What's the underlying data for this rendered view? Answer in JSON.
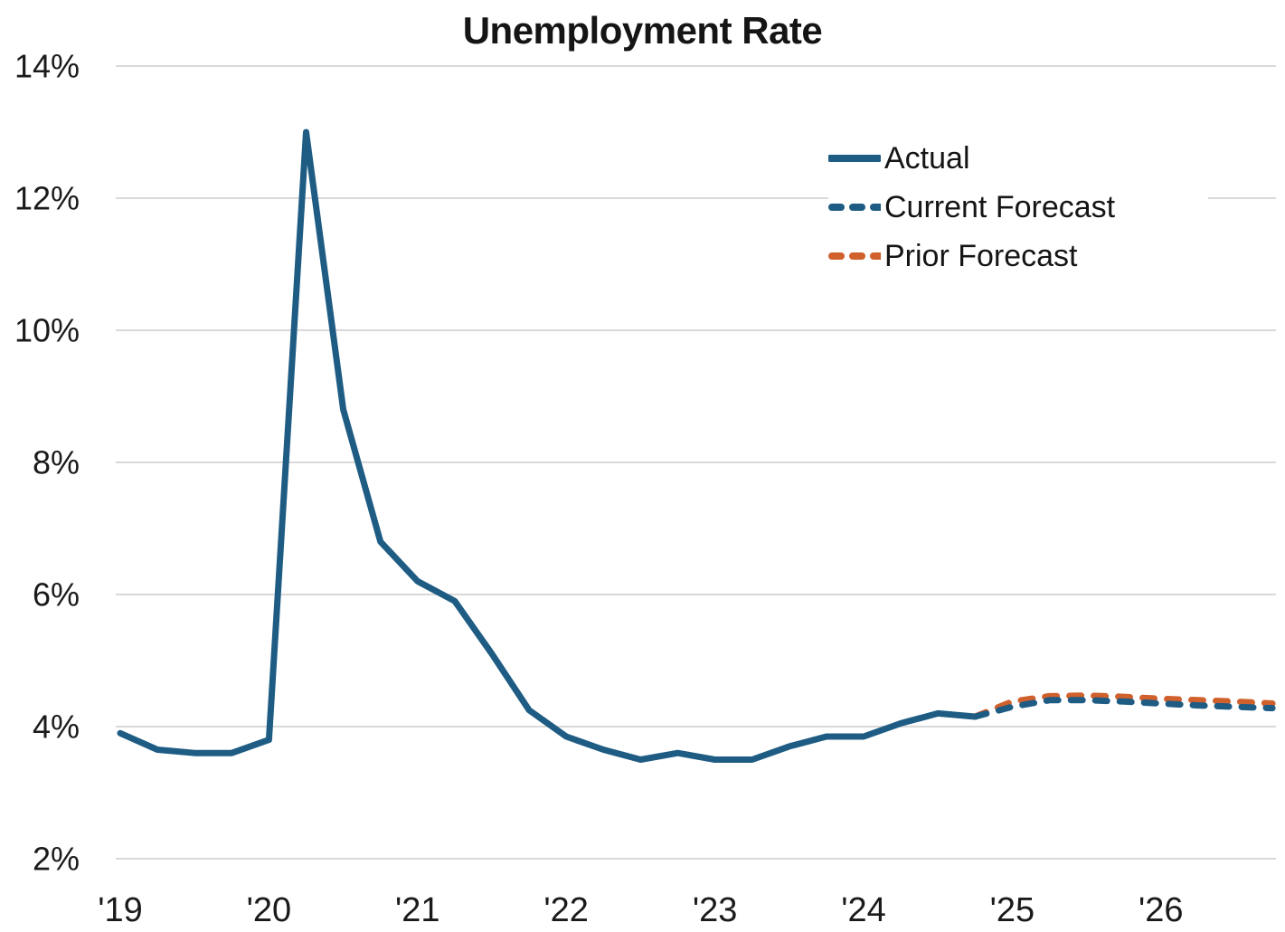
{
  "title": "Unemployment Rate",
  "legend": {
    "items": [
      {
        "label": "Actual",
        "style": "solid",
        "color": "#1e5c84"
      },
      {
        "label": "Current Forecast",
        "style": "dashed",
        "color": "#1e5c84"
      },
      {
        "label": "Prior Forecast",
        "style": "dashed",
        "color": "#d0602c"
      }
    ]
  },
  "colors": {
    "actual": "#1e5c84",
    "current_forecast": "#1e5c84",
    "prior_forecast": "#d0602c",
    "gridline": "#d9d9d9",
    "axis_text": "#1a1a1a",
    "background": "#ffffff"
  },
  "chart_data": {
    "type": "line",
    "title": "Unemployment Rate",
    "xlabel": "",
    "ylabel": "",
    "ylim": [
      2,
      14
    ],
    "xlim": [
      2019.0,
      2026.99
    ],
    "grid": "horizontal",
    "legend_position": "upper right",
    "x_unit": "quarterly (decimal years)",
    "y_ticks": [
      {
        "value": 14,
        "label": "14%"
      },
      {
        "value": 12,
        "label": "12%"
      },
      {
        "value": 10,
        "label": "10%"
      },
      {
        "value": 8,
        "label": "8%"
      },
      {
        "value": 6,
        "label": "6%"
      },
      {
        "value": 4,
        "label": "4%"
      },
      {
        "value": 2,
        "label": "2%"
      }
    ],
    "x_ticks": [
      {
        "value": 2019,
        "label": "'19"
      },
      {
        "value": 2020,
        "label": "'20"
      },
      {
        "value": 2021,
        "label": "'21"
      },
      {
        "value": 2022,
        "label": "'22"
      },
      {
        "value": 2023,
        "label": "'23"
      },
      {
        "value": 2024,
        "label": "'24"
      },
      {
        "value": 2025,
        "label": "'25"
      },
      {
        "value": 2026,
        "label": "'26"
      }
    ],
    "series": [
      {
        "name": "Actual",
        "style": "solid",
        "color": "#1e5c84",
        "x": [
          2019.0,
          2019.25,
          2019.5,
          2019.75,
          2020.0,
          2020.25,
          2020.5,
          2020.75,
          2021.0,
          2021.25,
          2021.5,
          2021.75,
          2022.0,
          2022.25,
          2022.5,
          2022.75,
          2023.0,
          2023.25,
          2023.5,
          2023.75,
          2024.0,
          2024.25,
          2024.5,
          2024.75
        ],
        "values": [
          3.9,
          3.65,
          3.6,
          3.6,
          3.8,
          13.0,
          8.8,
          6.8,
          6.2,
          5.9,
          5.1,
          4.25,
          3.85,
          3.65,
          3.5,
          3.6,
          3.5,
          3.5,
          3.7,
          3.85,
          3.85,
          4.05,
          4.2,
          4.15
        ]
      },
      {
        "name": "Current Forecast",
        "style": "dashed",
        "color": "#1e5c84",
        "x": [
          2024.75,
          2025.0,
          2025.25,
          2025.5,
          2025.75,
          2026.0,
          2026.25,
          2026.5,
          2026.75
        ],
        "values": [
          4.15,
          4.3,
          4.4,
          4.4,
          4.38,
          4.35,
          4.32,
          4.3,
          4.28
        ]
      },
      {
        "name": "Prior Forecast",
        "style": "dashed",
        "color": "#d0602c",
        "x": [
          2024.75,
          2025.0,
          2025.25,
          2025.5,
          2025.75,
          2026.0,
          2026.25,
          2026.5,
          2026.75
        ],
        "values": [
          4.15,
          4.38,
          4.46,
          4.47,
          4.45,
          4.42,
          4.4,
          4.38,
          4.35
        ]
      }
    ]
  }
}
